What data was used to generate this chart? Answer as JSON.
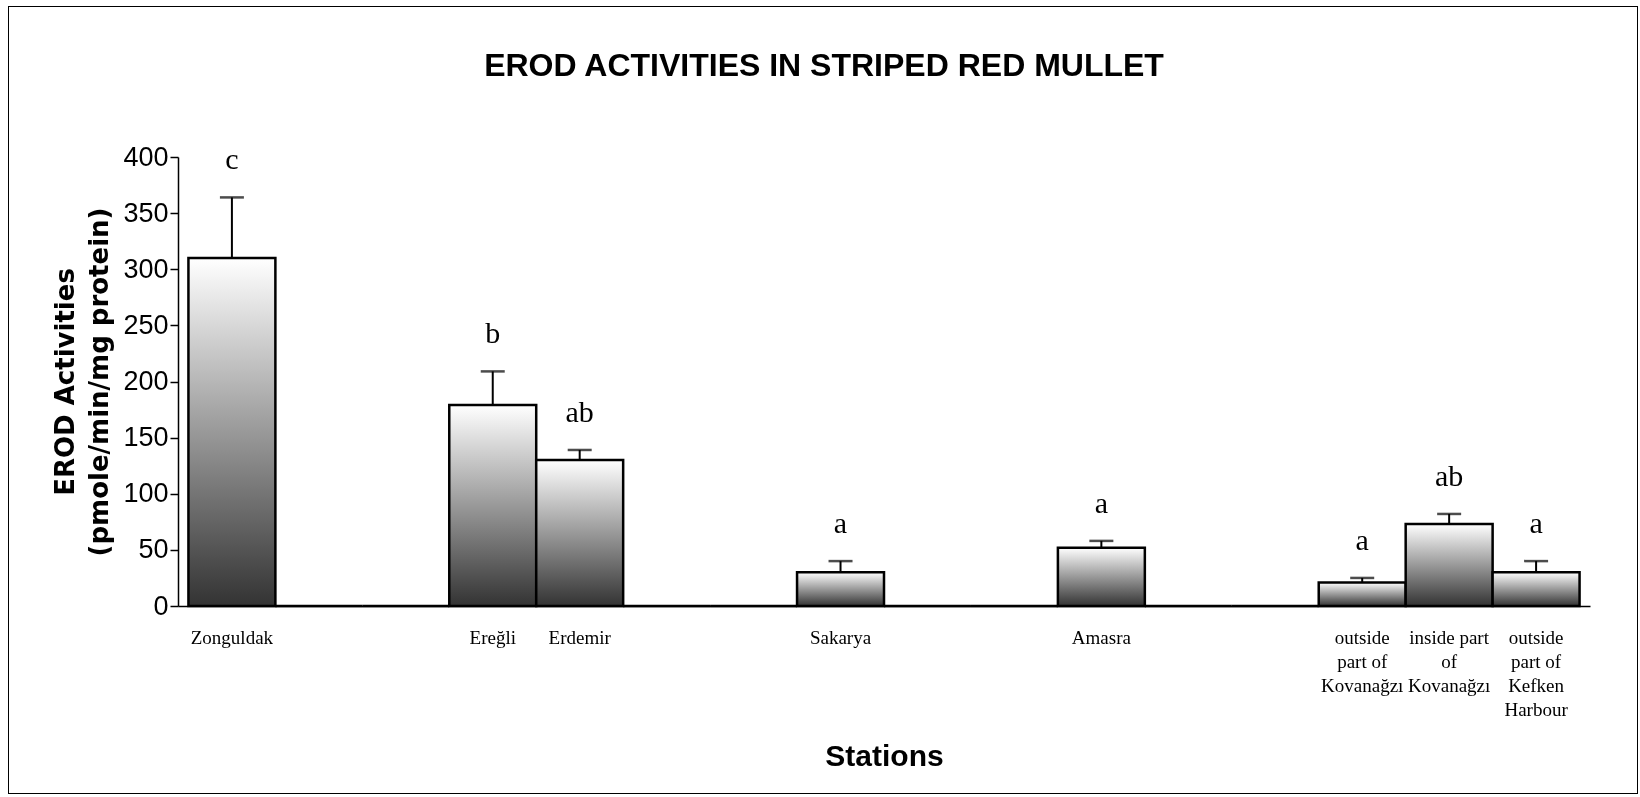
{
  "chart_data": {
    "type": "bar",
    "title": "EROD ACTIVITIES IN STRIPED RED MULLET",
    "xlabel": "Stations",
    "ylabel": "EROD Activities (pmole/min/mg protein)",
    "categories": [
      "Zonguldak",
      null,
      null,
      "Ereğli",
      "Erdemir",
      null,
      null,
      "Sakarya",
      null,
      null,
      "Amasra",
      null,
      null,
      "outside part of Kovanağzı",
      "inside part of Kovanağzı",
      "outside part of Kefken Harbour"
    ],
    "values": [
      310,
      0,
      0,
      179,
      130,
      0,
      0,
      30,
      0,
      0,
      52,
      0,
      0,
      21,
      73,
      30
    ],
    "errors": [
      [
        310,
        364
      ],
      null,
      null,
      [
        179,
        209
      ],
      [
        130,
        139
      ],
      null,
      null,
      [
        30,
        40
      ],
      null,
      null,
      [
        52,
        58
      ],
      null,
      null,
      [
        21,
        25
      ],
      [
        73,
        82
      ],
      [
        30,
        40
      ]
    ],
    "color": "#000000",
    "ylim": [
      0,
      400
    ],
    "yticks": [
      0,
      50,
      100,
      150,
      200,
      250,
      300,
      350,
      400
    ],
    "annotations": [
      "c",
      "b",
      "ab",
      "a",
      "a",
      "a",
      "ab",
      "a"
    ]
  }
}
